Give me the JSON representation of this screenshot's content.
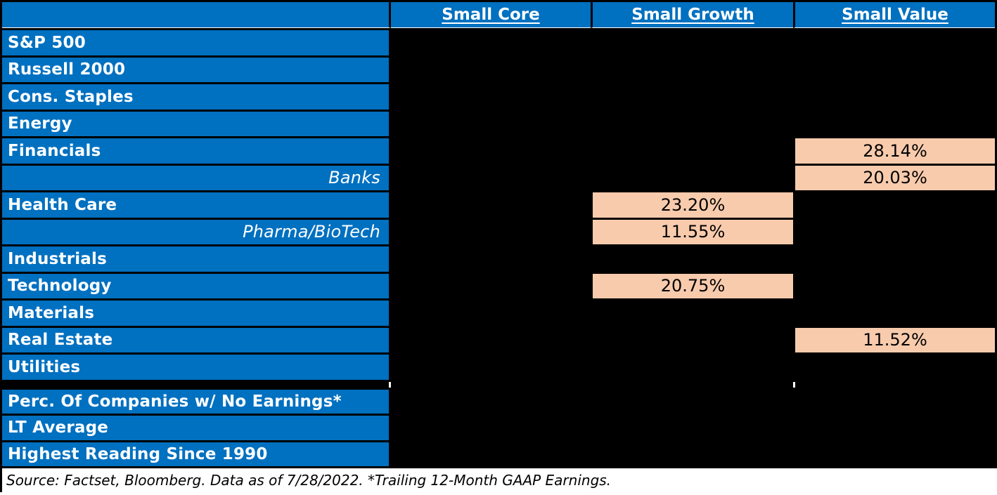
{
  "colors": {
    "header_blue": "#0070C0",
    "highlight_peach": "#F8CBAD",
    "redaction_black": "#000000",
    "label_text": "#FFFFFF",
    "value_text": "#000000"
  },
  "table": {
    "columns": [
      "Small Core",
      "Small Growth",
      "Small Value"
    ],
    "rows": [
      {
        "label": "S&P 500",
        "cells": [
          "",
          "",
          ""
        ]
      },
      {
        "label": "Russell 2000",
        "cells": [
          "",
          "",
          ""
        ]
      },
      {
        "label": "Cons. Staples",
        "cells": [
          "",
          "",
          ""
        ]
      },
      {
        "label": "Energy",
        "cells": [
          "",
          "",
          ""
        ]
      },
      {
        "label": "Financials",
        "cells": [
          "",
          "",
          "28.14%"
        ]
      },
      {
        "label": "Banks",
        "cells": [
          "",
          "",
          "20.03%"
        ]
      },
      {
        "label": "Health Care",
        "cells": [
          "",
          "23.20%",
          ""
        ]
      },
      {
        "label": "Pharma/BioTech",
        "cells": [
          "",
          "11.55%",
          ""
        ]
      },
      {
        "label": "Industrials",
        "cells": [
          "",
          "",
          ""
        ]
      },
      {
        "label": "Technology",
        "cells": [
          "",
          "20.75%",
          ""
        ]
      },
      {
        "label": "Materials",
        "cells": [
          "",
          "",
          ""
        ]
      },
      {
        "label": "Real Estate",
        "cells": [
          "",
          "",
          "11.52%"
        ]
      },
      {
        "label": "Utilities",
        "cells": [
          "",
          "",
          ""
        ]
      }
    ],
    "summary_rows": [
      {
        "label": "Perc. Of Companies w/ No Earnings*"
      },
      {
        "label": "LT Average"
      },
      {
        "label": "Highest Reading Since 1990"
      }
    ]
  },
  "footer": {
    "text": "Source: Factset, Bloomberg. Data as of 7/28/2022.  *Trailing 12-Month GAAP Earnings."
  },
  "chart_data": {
    "type": "table",
    "columns": [
      "Small Core",
      "Small Growth",
      "Small Value"
    ],
    "row_labels": [
      "S&P 500",
      "Russell 2000",
      "Cons. Staples",
      "Energy",
      "Financials",
      "Banks",
      "Health Care",
      "Pharma/BioTech",
      "Industrials",
      "Technology",
      "Materials",
      "Real Estate",
      "Utilities",
      "Perc. Of Companies w/ No Earnings*",
      "LT Average",
      "Highest Reading Since 1990"
    ],
    "visible_values": [
      {
        "row": "Financials",
        "column": "Small Value",
        "value": "28.14%"
      },
      {
        "row": "Banks",
        "column": "Small Value",
        "value": "20.03%"
      },
      {
        "row": "Health Care",
        "column": "Small Growth",
        "value": "23.20%"
      },
      {
        "row": "Pharma/BioTech",
        "column": "Small Growth",
        "value": "11.55%"
      },
      {
        "row": "Technology",
        "column": "Small Growth",
        "value": "20.75%"
      },
      {
        "row": "Real Estate",
        "column": "Small Value",
        "value": "11.52%"
      }
    ],
    "note": "All other data cells are rendered as solid black (redacted) in the image."
  }
}
